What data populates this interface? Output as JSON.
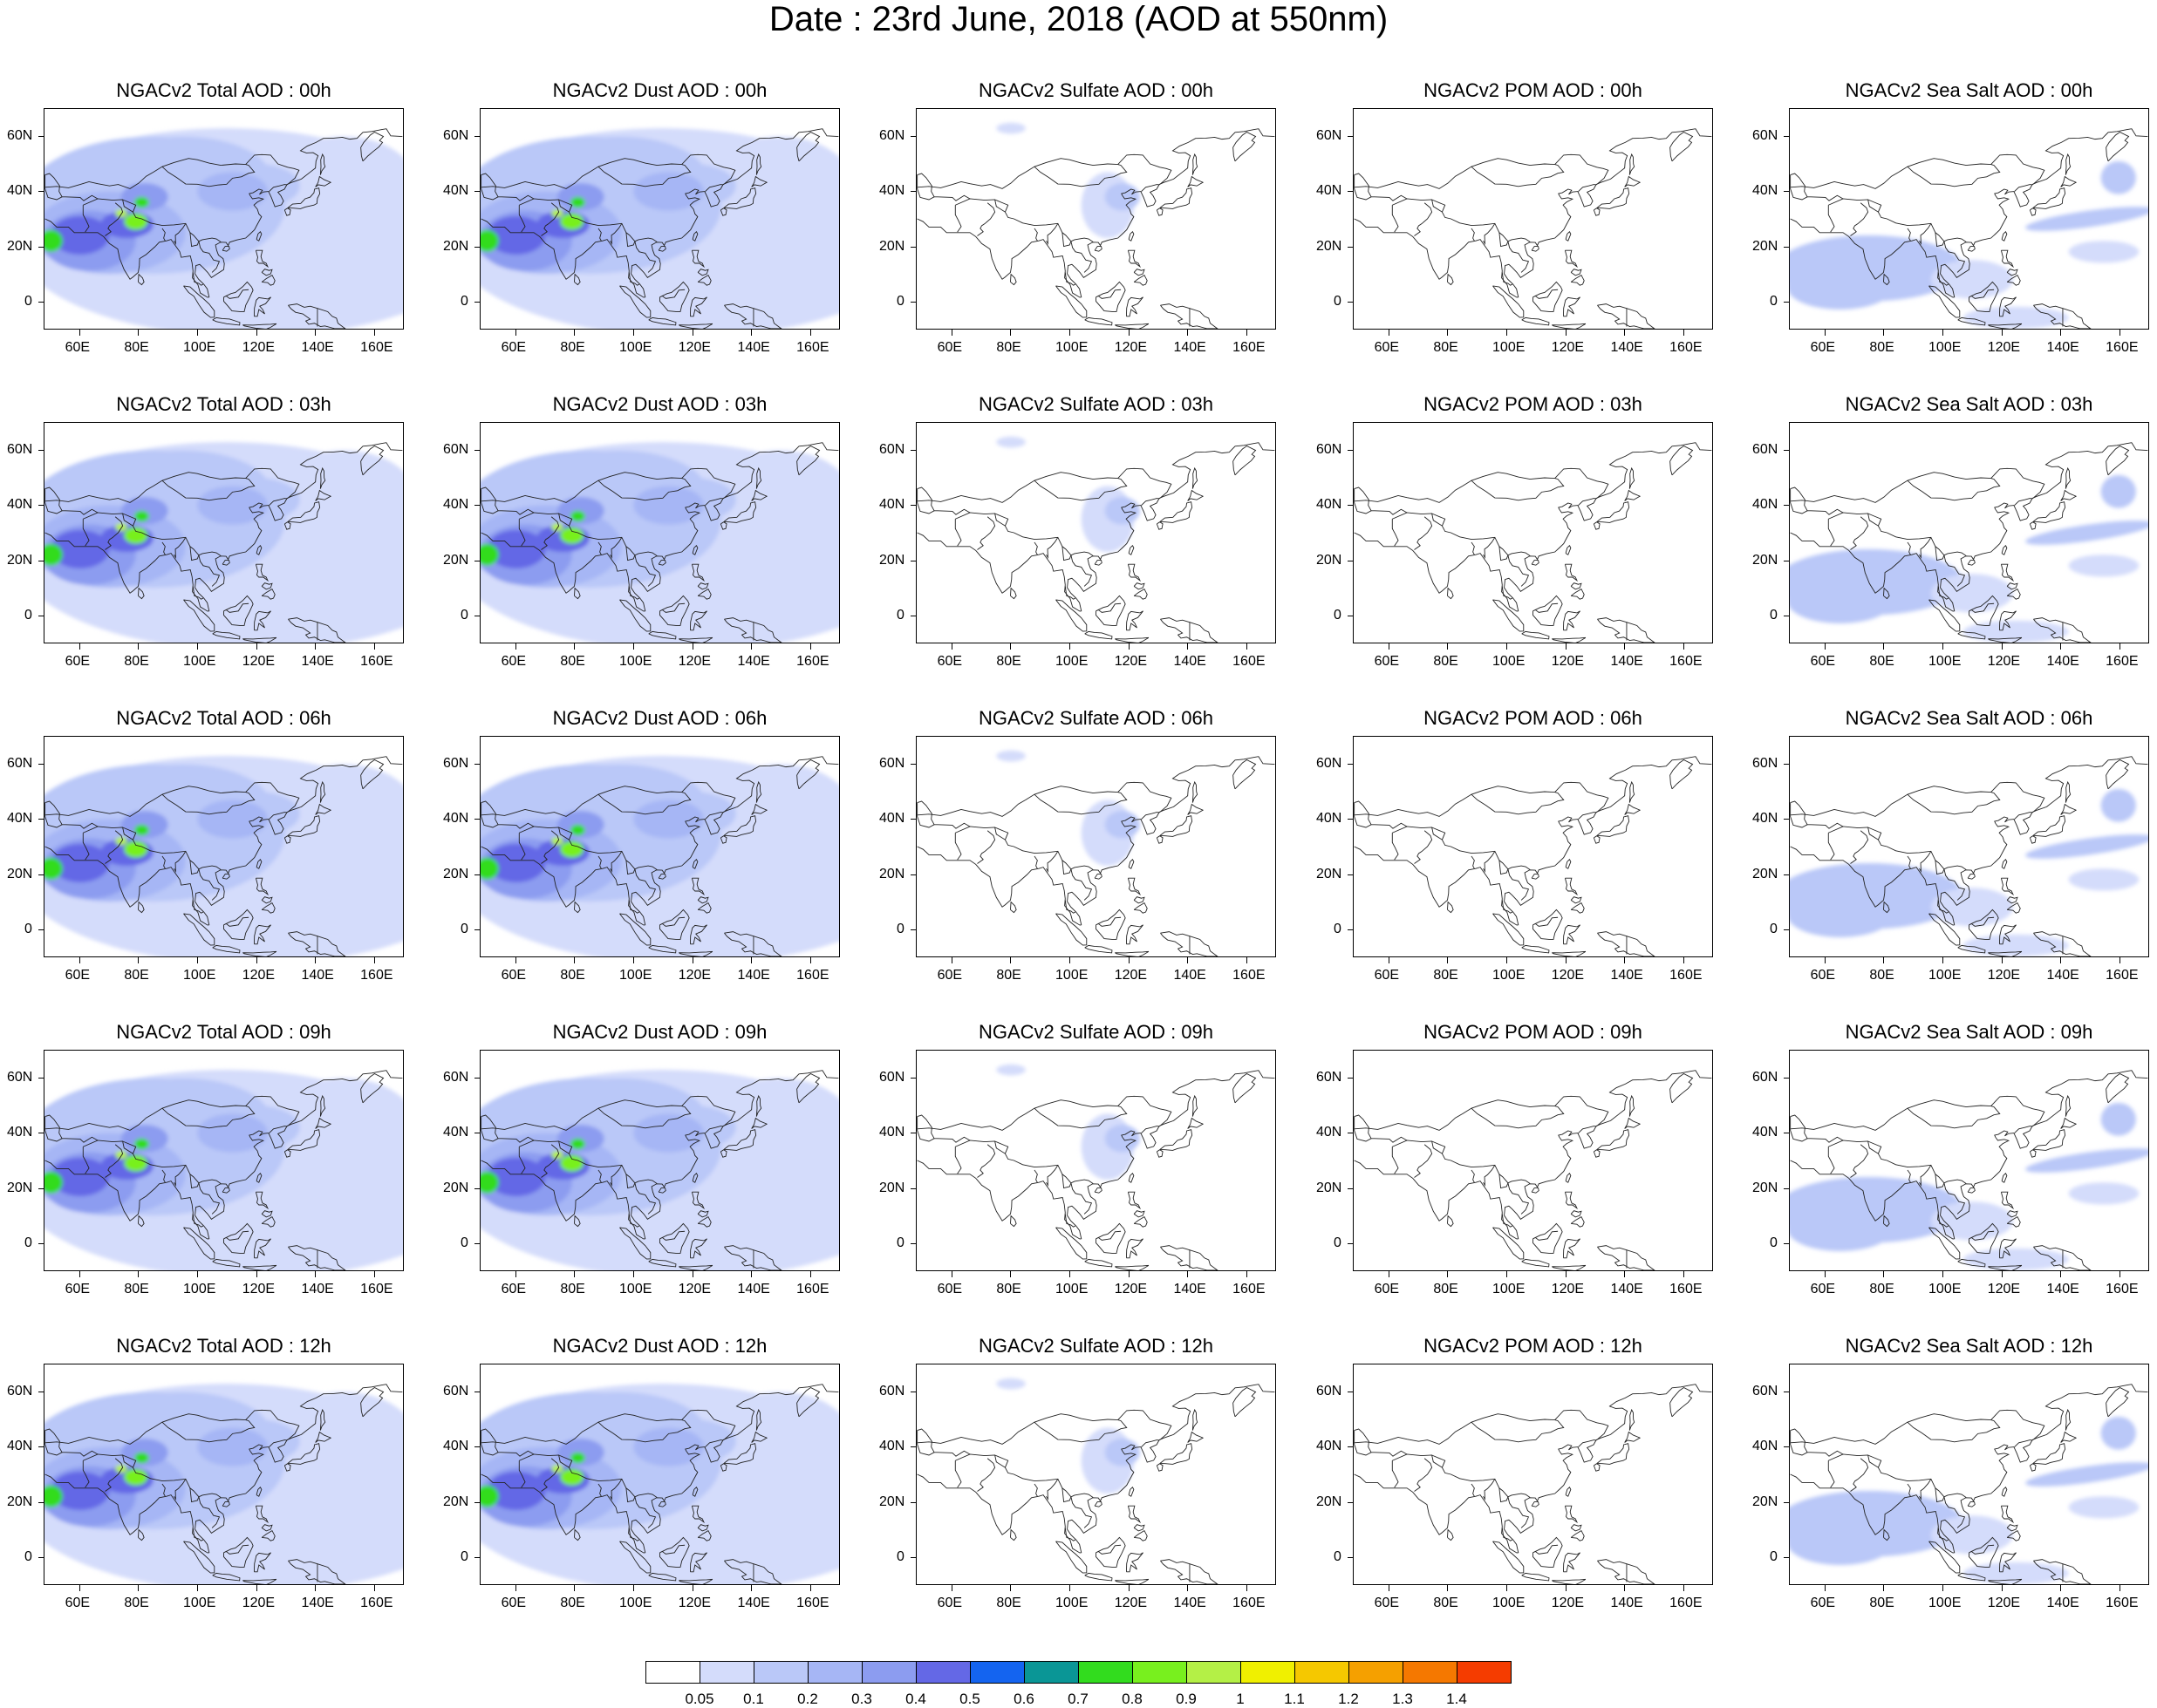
{
  "title": "Date : 23rd June, 2018 (AOD at 550nm)",
  "axes": {
    "x_ticks": [
      "60E",
      "80E",
      "100E",
      "120E",
      "140E",
      "160E"
    ],
    "y_ticks": [
      "60N",
      "40N",
      "20N",
      "0"
    ],
    "lon_range": [
      48,
      170
    ],
    "lat_range": [
      -10,
      70
    ]
  },
  "columns": [
    {
      "field": "Total AOD",
      "palette_level": "high"
    },
    {
      "field": "Dust AOD",
      "palette_level": "high"
    },
    {
      "field": "Sulfate AOD",
      "palette_level": "sulfate"
    },
    {
      "field": "POM AOD",
      "palette_level": "none"
    },
    {
      "field": "Sea Salt AOD",
      "palette_level": "seasalt"
    }
  ],
  "panels": [
    [
      "NGACv2 Total AOD : 00h",
      "NGACv2 Dust AOD : 00h",
      "NGACv2 Sulfate AOD : 00h",
      "NGACv2 POM AOD : 00h",
      "NGACv2 Sea Salt AOD : 00h"
    ],
    [
      "NGACv2 Total AOD : 03h",
      "NGACv2 Dust AOD : 03h",
      "NGACv2 Sulfate AOD : 03h",
      "NGACv2 POM AOD : 03h",
      "NGACv2 Sea Salt AOD : 03h"
    ],
    [
      "NGACv2 Total AOD : 06h",
      "NGACv2 Dust AOD : 06h",
      "NGACv2 Sulfate AOD : 06h",
      "NGACv2 POM AOD : 06h",
      "NGACv2 Sea Salt AOD : 06h"
    ],
    [
      "NGACv2 Total AOD : 09h",
      "NGACv2 Dust AOD : 09h",
      "NGACv2 Sulfate AOD : 09h",
      "NGACv2 POM AOD : 09h",
      "NGACv2 Sea Salt  AOD : 09h"
    ],
    [
      "NGACv2 Total AOD  : 12h",
      "NGACv2 Dust AOD : 12h",
      "NGACv2 Sulfate AOD : 12h",
      "NGACv2 POM  AOD : 12h",
      "NGACv2 Sea Salt  AOD : 12h"
    ]
  ],
  "colorbar": {
    "colors": [
      "#ffffff",
      "#d4dcfb",
      "#bac8f8",
      "#a6b6f5",
      "#8c9cf0",
      "#6468e6",
      "#1464f0",
      "#0a9696",
      "#32dc1e",
      "#78f01e",
      "#b4f046",
      "#f0f000",
      "#f5c800",
      "#f5a000",
      "#f57800",
      "#f53c00"
    ],
    "labels": [
      "0.05",
      "0.1",
      "0.2",
      "0.3",
      "0.4",
      "0.5",
      "0.6",
      "0.7",
      "0.8",
      "0.9",
      "1",
      "1.1",
      "1.2",
      "1.3",
      "1.4"
    ]
  }
}
